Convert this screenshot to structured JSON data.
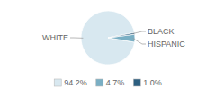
{
  "chart_data": {
    "type": "pie",
    "categories": [
      "WHITE",
      "HISPANIC",
      "BLACK"
    ],
    "values": [
      94.2,
      4.7,
      1.0
    ],
    "value_labels": [
      "94.2%",
      "4.7%",
      "1.0%"
    ],
    "colors": [
      "#d8e8f0",
      "#7aafc4",
      "#2d5f80"
    ],
    "legend": "bottom"
  }
}
